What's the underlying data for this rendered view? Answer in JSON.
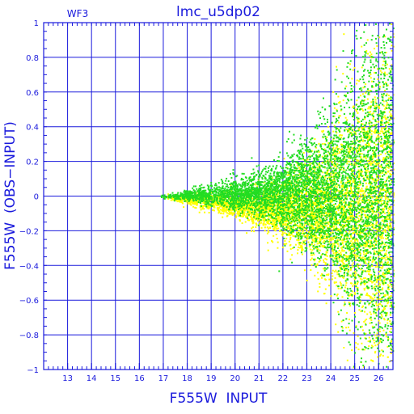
{
  "chart_data": {
    "type": "scatter",
    "title": "lmc_u5dp02",
    "corner_label": "WF3",
    "xlabel": "F555W  INPUT",
    "ylabel": "F555W  (OBS−INPUT)",
    "xlim": [
      12.0,
      26.6
    ],
    "ylim": [
      -1.0,
      1.0
    ],
    "x_ticks": [
      13,
      14,
      15,
      16,
      17,
      18,
      19,
      20,
      21,
      22,
      23,
      24,
      25,
      26
    ],
    "y_ticks": [
      -1,
      -0.8,
      -0.6,
      -0.4,
      -0.2,
      0,
      0.2,
      0.4,
      0.6,
      0.8,
      1
    ],
    "y_tick_labels": [
      "−1",
      "−0.8",
      "−0.6",
      "−0.4",
      "−0.2",
      "0",
      "0.2",
      "0.4",
      "0.6",
      "0.8",
      "1"
    ],
    "grid": true,
    "series": [
      {
        "color": "#ffff00",
        "description_points": "envelope",
        "x_start": 17.0,
        "x_end": 26.6,
        "density_peak_x": 22.5,
        "envelope": [
          {
            "x": 17.0,
            "spread": 0.01
          },
          {
            "x": 18.0,
            "spread": 0.03
          },
          {
            "x": 19.0,
            "spread": 0.05
          },
          {
            "x": 20.0,
            "spread": 0.08
          },
          {
            "x": 21.0,
            "spread": 0.12
          },
          {
            "x": 22.0,
            "spread": 0.18
          },
          {
            "x": 23.0,
            "spread": 0.27
          },
          {
            "x": 24.0,
            "spread": 0.42
          },
          {
            "x": 25.0,
            "spread": 0.65
          },
          {
            "x": 26.0,
            "spread": 0.95
          }
        ],
        "offset": -0.08
      },
      {
        "color": "#22dd22",
        "description_points": "envelope",
        "x_start": 16.8,
        "x_end": 26.6,
        "density_peak_x": 25.0,
        "envelope": [
          {
            "x": 17.0,
            "spread": 0.01
          },
          {
            "x": 18.0,
            "spread": 0.03
          },
          {
            "x": 19.0,
            "spread": 0.06
          },
          {
            "x": 20.0,
            "spread": 0.09
          },
          {
            "x": 21.0,
            "spread": 0.13
          },
          {
            "x": 22.0,
            "spread": 0.2
          },
          {
            "x": 23.0,
            "spread": 0.3
          },
          {
            "x": 24.0,
            "spread": 0.45
          },
          {
            "x": 25.0,
            "spread": 0.7
          },
          {
            "x": 26.0,
            "spread": 1.0
          }
        ],
        "offset": 0.02
      }
    ]
  }
}
